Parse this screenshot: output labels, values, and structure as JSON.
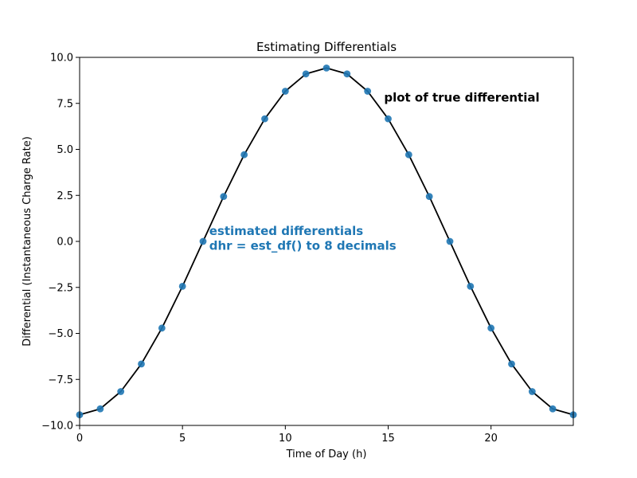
{
  "chart_data": {
    "type": "line",
    "title": "Estimating Differentials",
    "xlabel": "Time of Day (h)",
    "ylabel": "Differential (Instantaneous Charge Rate)",
    "xlim": [
      0,
      24
    ],
    "ylim": [
      -10,
      10
    ],
    "xticks": [
      "0",
      "5",
      "10",
      "15",
      "20"
    ],
    "yticks": [
      "10.0",
      "7.5",
      "5.0",
      "2.5",
      "0.0",
      "−2.5",
      "−5.0",
      "−7.5",
      "−10.0"
    ],
    "grid": false,
    "colors": {
      "points": "#1f77b4",
      "curve": "#000000",
      "estimate_text": "#1f77b4",
      "true_text": "#000000"
    },
    "series": [
      {
        "kind": "curve",
        "x_range": [
          0,
          24
        ],
        "points": [
          [
            0,
            -9.42
          ],
          [
            1,
            -9.1
          ],
          [
            2,
            -8.16
          ],
          [
            3,
            -6.66
          ],
          [
            4,
            -4.71
          ],
          [
            5,
            -2.44
          ],
          [
            6,
            0
          ],
          [
            7,
            2.44
          ],
          [
            8,
            4.71
          ],
          [
            9,
            6.66
          ],
          [
            10,
            8.16
          ],
          [
            11,
            9.1
          ],
          [
            12,
            9.42
          ],
          [
            13,
            9.1
          ],
          [
            14,
            8.16
          ],
          [
            15,
            6.66
          ],
          [
            16,
            4.71
          ],
          [
            17,
            2.44
          ],
          [
            18,
            0
          ],
          [
            19,
            -2.44
          ],
          [
            20,
            -4.71
          ],
          [
            21,
            -6.66
          ],
          [
            22,
            -8.16
          ],
          [
            23,
            -9.1
          ],
          [
            24,
            -9.42
          ]
        ]
      },
      {
        "kind": "scatter",
        "x": [
          0,
          1,
          2,
          3,
          4,
          5,
          6,
          7,
          8,
          9,
          10,
          11,
          12,
          13,
          14,
          15,
          16,
          17,
          18,
          19,
          20,
          21,
          22,
          23,
          24
        ],
        "y": [
          -9.42,
          -9.1,
          -8.16,
          -6.66,
          -4.71,
          -2.44,
          0,
          2.44,
          4.71,
          6.66,
          8.16,
          9.1,
          9.42,
          9.1,
          8.16,
          6.66,
          4.71,
          2.44,
          0,
          -2.44,
          -4.71,
          -6.66,
          -8.16,
          -9.1,
          -9.42
        ]
      }
    ],
    "annotations": [
      {
        "text": "plot of true differential",
        "x": 14.8,
        "y": 7.6,
        "color": "#000000"
      },
      {
        "text": "estimated differentials",
        "x": 6.3,
        "y": 0.35,
        "color": "#1f77b4"
      },
      {
        "text": "dhr = est_df() to 8 decimals",
        "x": 6.3,
        "y": -0.45,
        "color": "#1f77b4"
      }
    ]
  }
}
